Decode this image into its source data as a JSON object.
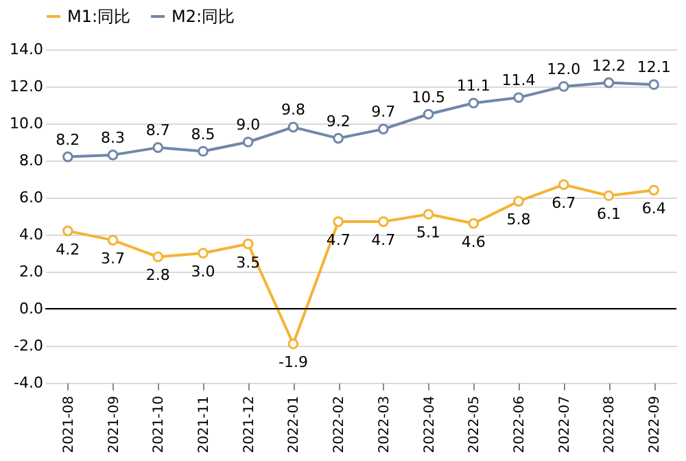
{
  "chart_data": {
    "type": "line",
    "categories": [
      "2021-08",
      "2021-09",
      "2021-10",
      "2021-11",
      "2021-12",
      "2022-01",
      "2022-02",
      "2022-03",
      "2022-04",
      "2022-05",
      "2022-06",
      "2022-07",
      "2022-08",
      "2022-09"
    ],
    "series": [
      {
        "name": "M1:同比",
        "color": "#f5b335",
        "values": [
          4.2,
          3.7,
          2.8,
          3.0,
          3.5,
          -1.9,
          4.7,
          4.7,
          5.1,
          4.6,
          5.8,
          6.7,
          6.1,
          6.4
        ],
        "value_labels": [
          "4.2",
          "3.7",
          "2.8",
          "3.0",
          "3.5",
          "-1.9",
          "4.7",
          "4.7",
          "5.1",
          "4.6",
          "5.8",
          "6.7",
          "6.1",
          "6.4"
        ]
      },
      {
        "name": "M2:同比",
        "color": "#6f88a8",
        "values": [
          8.2,
          8.3,
          8.7,
          8.5,
          9.0,
          9.8,
          9.2,
          9.7,
          10.5,
          11.1,
          11.4,
          12.0,
          12.2,
          12.1
        ],
        "value_labels": [
          "8.2",
          "8.3",
          "8.7",
          "8.5",
          "9.0",
          "9.8",
          "9.2",
          "9.7",
          "10.5",
          "11.1",
          "11.4",
          "12.0",
          "12.2",
          "12.1"
        ]
      }
    ],
    "ylim": [
      -4,
      14
    ],
    "yticks": [
      {
        "value": -4,
        "label": "-4.0"
      },
      {
        "value": -2,
        "label": "-2.0"
      },
      {
        "value": 0,
        "label": "0.0"
      },
      {
        "value": 2,
        "label": "2.0"
      },
      {
        "value": 4,
        "label": "4.0"
      },
      {
        "value": 6,
        "label": "6.0"
      },
      {
        "value": 8,
        "label": "8.0"
      },
      {
        "value": 10,
        "label": "10.0"
      },
      {
        "value": 12,
        "label": "12.0"
      },
      {
        "value": 14,
        "label": "14.0"
      }
    ],
    "ref_lines": [
      {
        "axis": "y",
        "value": 0,
        "color": "#000000"
      }
    ],
    "grid": "y",
    "legend": "top",
    "marker": "circle",
    "line_style": "solid"
  }
}
